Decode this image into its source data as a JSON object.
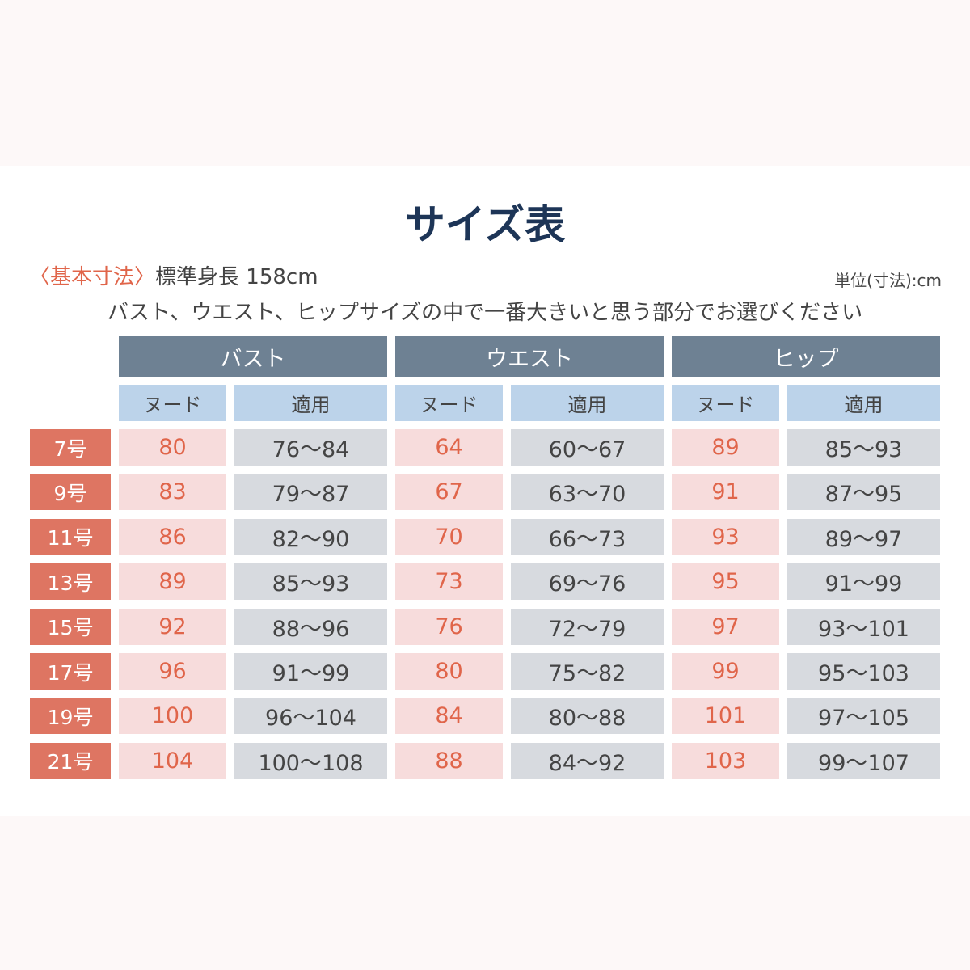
{
  "title": "サイズ表",
  "basis": {
    "label": "〈基本寸法〉",
    "text": "標準身長 158cm"
  },
  "unit": "単位(寸法):cm",
  "note": "バスト、ウエスト、ヒップサイズの中で一番大きいと思う部分でお選びください",
  "table": {
    "groups": [
      "バスト",
      "ウエスト",
      "ヒップ"
    ],
    "subheaders": [
      "ヌード",
      "適用",
      "ヌード",
      "適用",
      "ヌード",
      "適用"
    ],
    "rows": [
      [
        "7号",
        "80",
        "76～84",
        "64",
        "60～67",
        "89",
        "85～93"
      ],
      [
        "9号",
        "83",
        "79～87",
        "67",
        "63～70",
        "91",
        "87～95"
      ],
      [
        "11号",
        "86",
        "82～90",
        "70",
        "66～73",
        "93",
        "89～97"
      ],
      [
        "13号",
        "89",
        "85～93",
        "73",
        "69～76",
        "95",
        "91～99"
      ],
      [
        "15号",
        "92",
        "88～96",
        "76",
        "72～79",
        "97",
        "93～101"
      ],
      [
        "17号",
        "96",
        "91～99",
        "80",
        "75～82",
        "99",
        "95～103"
      ],
      [
        "19号",
        "100",
        "96～104",
        "84",
        "80～88",
        "101",
        "97～105"
      ],
      [
        "21号",
        "104",
        "100～108",
        "88",
        "84～92",
        "103",
        "99～107"
      ]
    ]
  }
}
